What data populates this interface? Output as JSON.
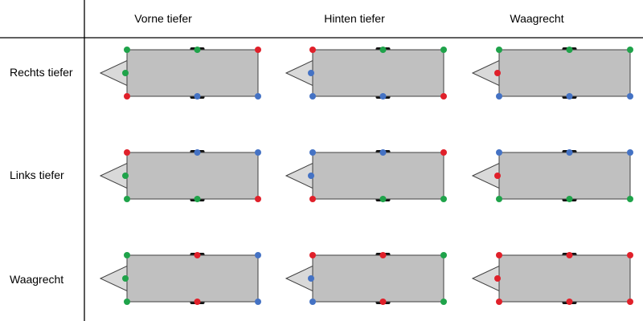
{
  "columns": [
    {
      "label": "Vorne tiefer"
    },
    {
      "label": "Hinten tiefer"
    },
    {
      "label": "Waagrecht"
    }
  ],
  "rows": [
    {
      "label": "Rechts tiefer",
      "cells": [
        {
          "tl": "green",
          "tm": "green",
          "tr": "red",
          "hitch": "green",
          "bl": "red",
          "bm": "blue",
          "br": "blue"
        },
        {
          "tl": "red",
          "tm": "green",
          "tr": "green",
          "hitch": "blue",
          "bl": "blue",
          "bm": "blue",
          "br": "red"
        },
        {
          "tl": "green",
          "tm": "green",
          "tr": "green",
          "hitch": "red",
          "bl": "blue",
          "bm": "blue",
          "br": "blue"
        }
      ]
    },
    {
      "label": "Links tiefer",
      "cells": [
        {
          "tl": "red",
          "tm": "blue",
          "tr": "blue",
          "hitch": "green",
          "bl": "green",
          "bm": "green",
          "br": "red"
        },
        {
          "tl": "blue",
          "tm": "blue",
          "tr": "red",
          "hitch": "blue",
          "bl": "red",
          "bm": "green",
          "br": "green"
        },
        {
          "tl": "blue",
          "tm": "blue",
          "tr": "blue",
          "hitch": "red",
          "bl": "green",
          "bm": "green",
          "br": "green"
        }
      ]
    },
    {
      "label": "Waagrecht",
      "cells": [
        {
          "tl": "green",
          "tm": "red",
          "tr": "blue",
          "hitch": "green",
          "bl": "green",
          "bm": "red",
          "br": "blue"
        },
        {
          "tl": "red",
          "tm": "red",
          "tr": "green",
          "hitch": "blue",
          "bl": "blue",
          "bm": "red",
          "br": "green"
        },
        {
          "tl": "red",
          "tm": "red",
          "tr": "red",
          "hitch": "red",
          "bl": "red",
          "bm": "red",
          "br": "red"
        }
      ]
    }
  ],
  "colors": {
    "green": "#1fa34a",
    "red": "#e0202a",
    "blue": "#4472c4",
    "body_fill": "#c0c0c0",
    "hitch_fill": "#d9d9d9",
    "outline": "#404040",
    "grid_line": "#000000"
  }
}
